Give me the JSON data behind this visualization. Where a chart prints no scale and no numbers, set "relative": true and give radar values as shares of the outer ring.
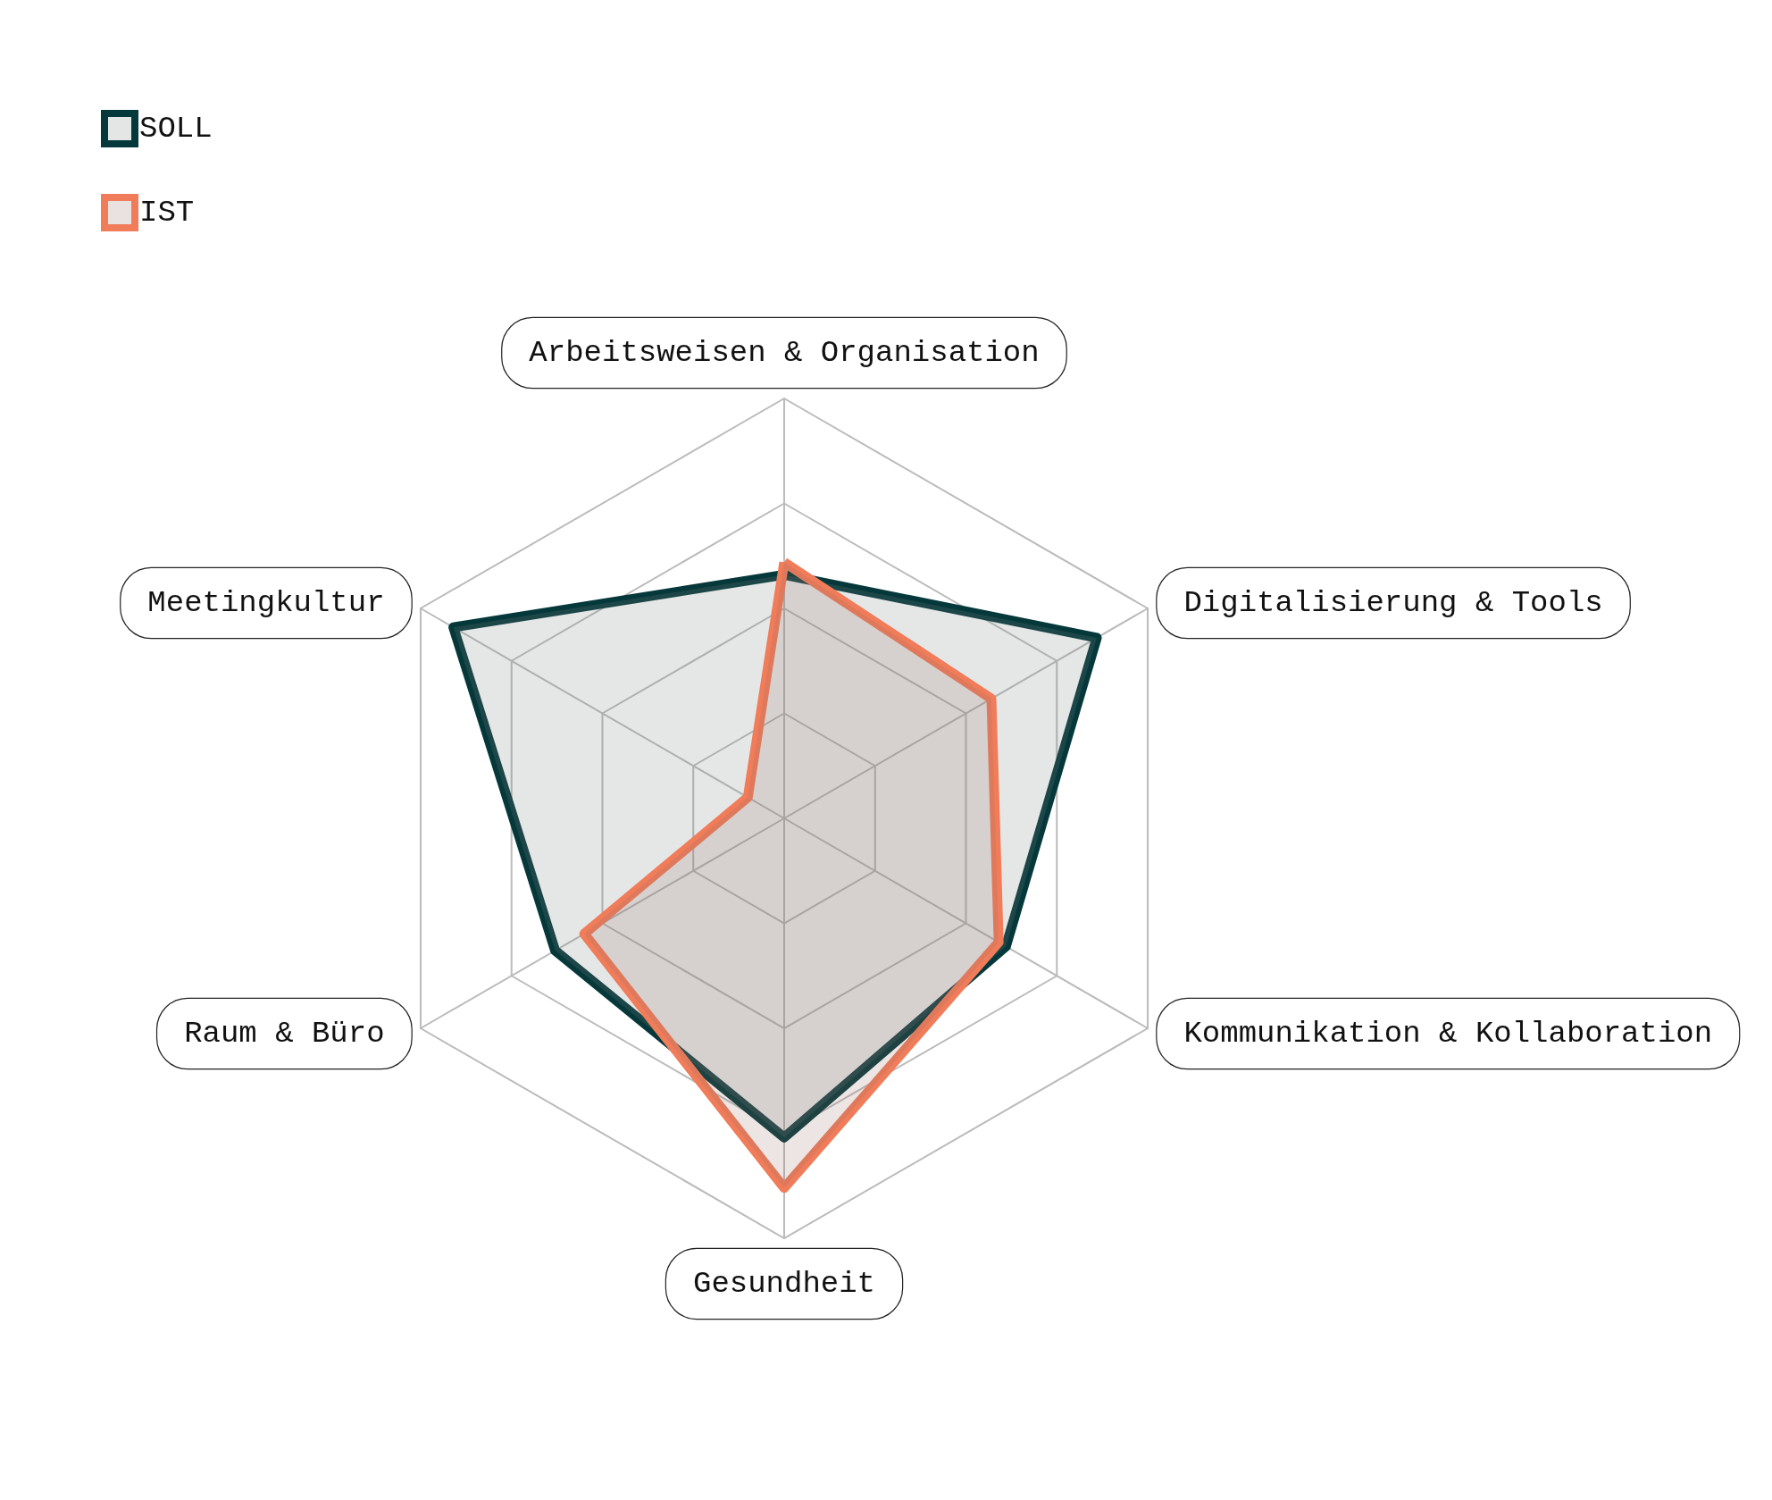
{
  "chart_data": {
    "type": "radar",
    "relative": true,
    "grid": true,
    "legend": "top left",
    "marker": "none",
    "categories": [
      "Arbeitsweisen & Organisation",
      "Digitalisierung & Tools",
      "Kommunikation & Kollaboration",
      "Gesundheit",
      "Raum & Büro",
      "Meetingkultur"
    ],
    "series": [
      {
        "name": "SOLL",
        "color": "#05383a",
        "values": [
          0.58,
          0.86,
          0.61,
          0.76,
          0.63,
          0.91
        ]
      },
      {
        "name": "IST",
        "color": "#f07c5a",
        "values": [
          0.61,
          0.57,
          0.59,
          0.88,
          0.55,
          0.1
        ]
      }
    ]
  }
}
